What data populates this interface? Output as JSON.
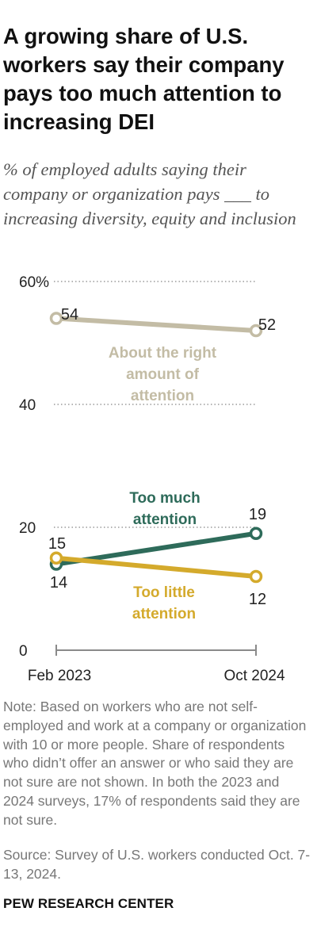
{
  "header": {
    "title": "A growing share of U.S. workers say their company pays too much attention to increasing DEI",
    "subtitle": "% of employed adults saying their company or organization pays ___ to increasing diversity, equity and inclusion"
  },
  "chart_data": {
    "type": "line",
    "categories": [
      "Feb 2023",
      "Oct 2024"
    ],
    "y_ticks": [
      "0",
      "20",
      "40",
      "60%"
    ],
    "ylim": [
      0,
      60
    ],
    "grid": "dotted",
    "series": [
      {
        "name": "About the right amount of attention",
        "label_lines": [
          "About the right",
          "amount of",
          "attention"
        ],
        "values": [
          54,
          52
        ],
        "value_labels": [
          "54",
          "52"
        ],
        "color": "#c3bca5"
      },
      {
        "name": "Too much attention",
        "label_lines": [
          "Too much",
          "attention"
        ],
        "values": [
          14,
          19
        ],
        "value_labels": [
          "14",
          "19"
        ],
        "color": "#2e6b5a"
      },
      {
        "name": "Too little attention",
        "label_lines": [
          "Too little",
          "attention"
        ],
        "values": [
          15,
          12
        ],
        "value_labels": [
          "15",
          "12"
        ],
        "color": "#d4aa2c"
      }
    ]
  },
  "footer": {
    "note": "Note: Based on workers who are not self-employed and work at a company or organization with 10 or more people. Share of respondents who didn’t offer an answer or who said they are not sure are not shown. In both the 2023 and 2024 surveys, 17% of respondents said they are not sure.",
    "source": "Source: Survey of U.S. workers conducted Oct. 7-13, 2024.",
    "brand": "PEW RESEARCH CENTER"
  }
}
